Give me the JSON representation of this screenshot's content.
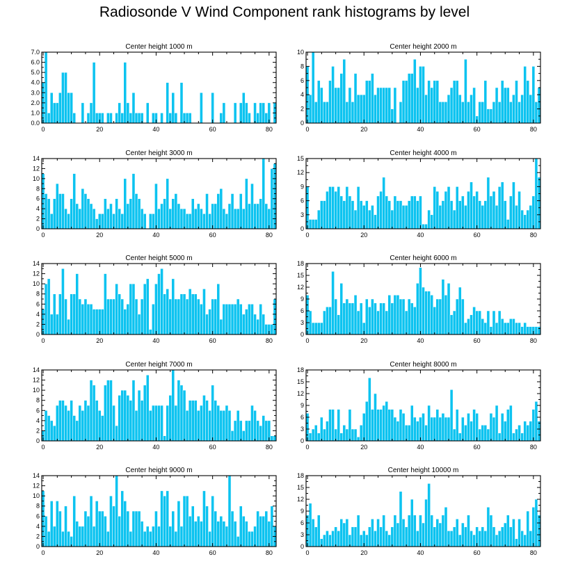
{
  "title": "Radiosonde V Wind Component rank histograms by level",
  "colors": {
    "bar": "#0cc3f0",
    "frame": "#000000",
    "background": "#ffffff"
  },
  "chart_data": [
    {
      "type": "bar",
      "title": "Center height 1000 m",
      "x_start": 0,
      "xticks": [
        0,
        20,
        40,
        60,
        80
      ],
      "ylim": [
        0,
        7
      ],
      "yticks": [
        "0.0",
        "1.0",
        "2.0",
        "3.0",
        "4.0",
        "5.0",
        "6.0",
        "7.0"
      ],
      "ytick_values": [
        0,
        1,
        2,
        3,
        4,
        5,
        6,
        7
      ],
      "values": [
        4,
        7,
        1,
        3,
        2,
        2,
        3,
        5,
        5,
        3,
        3,
        1,
        0,
        0,
        2,
        0,
        1,
        2,
        6,
        1,
        1,
        1,
        0,
        1,
        1,
        0,
        1,
        2,
        1,
        6,
        2,
        1,
        3,
        1,
        1,
        1,
        0,
        2,
        0,
        1,
        1,
        0,
        1,
        0,
        4,
        1,
        3,
        1,
        0,
        4,
        1,
        1,
        1,
        0,
        0,
        0,
        3,
        0,
        0,
        0,
        3,
        0,
        0,
        1,
        2,
        0,
        0,
        0,
        2,
        0,
        2,
        3,
        2,
        1,
        0,
        2,
        1,
        2,
        2,
        1,
        2,
        0,
        2
      ]
    },
    {
      "type": "bar",
      "title": "Center height 2000 m",
      "x_start": 0,
      "xticks": [
        0,
        20,
        40,
        60,
        80
      ],
      "ylim": [
        0,
        10
      ],
      "yticks": [
        "0",
        "2",
        "4",
        "6",
        "8",
        "10"
      ],
      "ytick_values": [
        0,
        2,
        4,
        6,
        8,
        10
      ],
      "values": [
        8,
        4,
        10,
        3,
        6,
        5,
        3,
        3,
        6,
        8,
        5,
        5,
        7,
        9,
        3,
        5,
        3,
        7,
        4,
        4,
        4,
        6,
        6,
        7,
        4,
        5,
        5,
        5,
        5,
        5,
        2,
        5,
        0,
        3,
        6,
        6,
        7,
        7,
        9,
        5,
        8,
        8,
        4,
        6,
        5,
        6,
        6,
        3,
        3,
        3,
        4,
        5,
        6,
        6,
        4,
        3,
        9,
        3,
        4,
        5,
        1,
        3,
        3,
        6,
        2,
        2,
        3,
        5,
        3,
        6,
        5,
        5,
        3,
        4,
        6,
        3,
        4,
        8,
        6,
        4,
        8,
        3,
        5
      ]
    },
    {
      "type": "bar",
      "title": "Center height 3000 m",
      "x_start": 0,
      "xticks": [
        0,
        20,
        40,
        60,
        80
      ],
      "ylim": [
        0,
        14
      ],
      "yticks": [
        "0",
        "2",
        "4",
        "6",
        "8",
        "10",
        "12",
        "14"
      ],
      "ytick_values": [
        0,
        2,
        4,
        6,
        8,
        10,
        12,
        14
      ],
      "values": [
        11,
        7,
        6,
        3,
        6,
        9,
        7,
        7,
        4,
        3,
        6,
        11,
        5,
        4,
        8,
        7,
        6,
        5,
        4,
        2,
        3,
        3,
        6,
        4,
        5,
        3,
        6,
        4,
        3,
        10,
        5,
        6,
        11,
        7,
        6,
        4,
        3,
        0,
        3,
        3,
        9,
        4,
        5,
        6,
        10,
        4,
        6,
        7,
        5,
        4,
        4,
        3,
        3,
        6,
        4,
        5,
        4,
        3,
        7,
        3,
        5,
        5,
        7,
        8,
        4,
        3,
        5,
        7,
        4,
        4,
        7,
        4,
        10,
        5,
        9,
        5,
        5,
        6,
        14,
        5,
        4,
        12,
        13
      ]
    },
    {
      "type": "bar",
      "title": "Center height 4000 m",
      "x_start": 0,
      "xticks": [
        0,
        20,
        40,
        60,
        80
      ],
      "ylim": [
        0,
        15
      ],
      "yticks": [
        "0",
        "3",
        "6",
        "9",
        "12",
        "15"
      ],
      "ytick_values": [
        0,
        3,
        6,
        9,
        12,
        15
      ],
      "values": [
        9,
        2,
        2,
        2,
        4,
        6,
        6,
        8,
        9,
        9,
        8,
        9,
        7,
        6,
        9,
        7,
        6,
        4,
        9,
        6,
        5,
        6,
        4,
        5,
        3,
        7,
        8,
        11,
        7,
        6,
        4,
        7,
        6,
        6,
        5,
        5,
        6,
        7,
        7,
        6,
        7,
        1,
        1,
        4,
        3,
        9,
        8,
        5,
        6,
        8,
        9,
        6,
        4,
        9,
        6,
        7,
        5,
        8,
        10,
        7,
        8,
        6,
        5,
        6,
        11,
        7,
        8,
        5,
        9,
        10,
        6,
        2,
        7,
        10,
        5,
        8,
        4,
        3,
        4,
        5,
        7,
        15,
        11
      ]
    },
    {
      "type": "bar",
      "title": "Center height 5000 m",
      "x_start": 0,
      "xticks": [
        0,
        20,
        40,
        60,
        80
      ],
      "ylim": [
        0,
        14
      ],
      "yticks": [
        "0",
        "2",
        "4",
        "6",
        "8",
        "10",
        "12",
        "14"
      ],
      "ytick_values": [
        0,
        2,
        4,
        6,
        8,
        10,
        12,
        14
      ],
      "values": [
        5,
        10,
        11,
        4,
        8,
        4,
        8,
        13,
        7,
        3,
        8,
        8,
        12,
        7,
        6,
        7,
        6,
        6,
        5,
        5,
        5,
        5,
        12,
        7,
        7,
        7,
        10,
        8,
        7,
        5,
        6,
        10,
        10,
        7,
        4,
        7,
        10,
        11,
        1,
        6,
        10,
        12,
        13,
        8,
        9,
        7,
        11,
        7,
        7,
        8,
        8,
        7,
        9,
        8,
        8,
        7,
        6,
        9,
        4,
        5,
        7,
        7,
        10,
        3,
        6,
        6,
        6,
        6,
        6,
        7,
        6,
        4,
        5,
        6,
        6,
        4,
        3,
        6,
        4,
        2,
        2,
        2,
        7
      ]
    },
    {
      "type": "bar",
      "title": "Center height 6000 m",
      "x_start": 0,
      "xticks": [
        0,
        20,
        40,
        60,
        80
      ],
      "ylim": [
        0,
        18
      ],
      "yticks": [
        "0",
        "3",
        "6",
        "9",
        "12",
        "15",
        "18"
      ],
      "ytick_values": [
        0,
        3,
        6,
        9,
        12,
        15,
        18
      ],
      "values": [
        10,
        6,
        3,
        3,
        3,
        3,
        6,
        7,
        7,
        16,
        9,
        5,
        13,
        8,
        9,
        8,
        8,
        10,
        6,
        8,
        3,
        9,
        7,
        9,
        8,
        6,
        8,
        8,
        6,
        10,
        8,
        10,
        10,
        9,
        9,
        6,
        9,
        8,
        7,
        13,
        17,
        12,
        11,
        11,
        10,
        7,
        9,
        9,
        14,
        10,
        13,
        5,
        6,
        9,
        12,
        9,
        3,
        4,
        5,
        7,
        6,
        6,
        4,
        3,
        6,
        2,
        6,
        3,
        6,
        4,
        3,
        3,
        4,
        4,
        3,
        3,
        2,
        3,
        2,
        2,
        2,
        2,
        2
      ]
    },
    {
      "type": "bar",
      "title": "Center height 7000 m",
      "x_start": 0,
      "xticks": [
        0,
        20,
        40,
        60,
        80
      ],
      "ylim": [
        0,
        14
      ],
      "yticks": [
        "0",
        "2",
        "4",
        "6",
        "8",
        "10",
        "12",
        "14"
      ],
      "ytick_values": [
        0,
        2,
        4,
        6,
        8,
        10,
        12,
        14
      ],
      "values": [
        2,
        6,
        5,
        4,
        3,
        7,
        8,
        8,
        7,
        6,
        8,
        5,
        4,
        7,
        6,
        8,
        7,
        12,
        11,
        8,
        6,
        5,
        11,
        12,
        12,
        7,
        3,
        9,
        10,
        10,
        9,
        8,
        12,
        6,
        10,
        8,
        11,
        13,
        6,
        7,
        7,
        7,
        7,
        1,
        7,
        9,
        14,
        7,
        12,
        11,
        10,
        6,
        8,
        8,
        8,
        6,
        7,
        9,
        8,
        6,
        11,
        8,
        7,
        6,
        6,
        7,
        6,
        2,
        4,
        6,
        4,
        2,
        4,
        4,
        7,
        6,
        4,
        3,
        5,
        4,
        4,
        1,
        1
      ]
    },
    {
      "type": "bar",
      "title": "Center height 8000 m",
      "x_start": 0,
      "xticks": [
        0,
        20,
        40,
        60,
        80
      ],
      "ylim": [
        0,
        18
      ],
      "yticks": [
        "0",
        "3",
        "6",
        "9",
        "12",
        "15",
        "18"
      ],
      "ytick_values": [
        0,
        3,
        6,
        9,
        12,
        15,
        18
      ],
      "values": [
        7,
        2,
        3,
        4,
        2,
        6,
        3,
        5,
        8,
        8,
        3,
        8,
        2,
        4,
        3,
        8,
        3,
        3,
        1,
        4,
        7,
        10,
        16,
        8,
        12,
        8,
        8,
        9,
        10,
        8,
        8,
        6,
        5,
        8,
        7,
        4,
        4,
        9,
        6,
        5,
        6,
        7,
        4,
        9,
        6,
        6,
        8,
        6,
        7,
        6,
        6,
        13,
        3,
        8,
        2,
        6,
        4,
        7,
        5,
        8,
        7,
        3,
        4,
        4,
        3,
        7,
        6,
        9,
        2,
        7,
        5,
        8,
        9,
        2,
        3,
        4,
        2,
        5,
        4,
        5,
        8,
        10,
        5
      ]
    },
    {
      "type": "bar",
      "title": "Center height 9000 m",
      "x_start": 0,
      "xticks": [
        0,
        20,
        40,
        60,
        80
      ],
      "ylim": [
        0,
        14
      ],
      "yticks": [
        "0",
        "2",
        "4",
        "6",
        "8",
        "10",
        "12",
        "14"
      ],
      "ytick_values": [
        0,
        2,
        4,
        6,
        8,
        10,
        12,
        14
      ],
      "values": [
        11,
        6,
        3,
        9,
        4,
        9,
        7,
        3,
        8,
        3,
        2,
        10,
        5,
        4,
        4,
        7,
        6,
        10,
        4,
        9,
        7,
        7,
        6,
        3,
        10,
        8,
        14,
        6,
        11,
        9,
        7,
        3,
        7,
        7,
        7,
        5,
        3,
        4,
        3,
        4,
        7,
        4,
        11,
        10,
        11,
        4,
        7,
        3,
        9,
        4,
        10,
        10,
        6,
        8,
        5,
        6,
        5,
        11,
        8,
        3,
        10,
        7,
        5,
        6,
        5,
        4,
        14,
        7,
        5,
        2,
        8,
        6,
        5,
        3,
        3,
        4,
        7,
        6,
        6,
        7,
        5,
        8,
        4
      ]
    },
    {
      "type": "bar",
      "title": "Center height 10000 m",
      "x_start": 0,
      "xticks": [
        0,
        20,
        40,
        60,
        80
      ],
      "ylim": [
        0,
        18
      ],
      "yticks": [
        "0",
        "3",
        "6",
        "9",
        "12",
        "15",
        "18"
      ],
      "ytick_values": [
        0,
        3,
        6,
        9,
        12,
        15,
        18
      ],
      "values": [
        8,
        11,
        7,
        5,
        8,
        2,
        3,
        4,
        3,
        4,
        5,
        4,
        7,
        6,
        7,
        3,
        5,
        5,
        8,
        3,
        4,
        3,
        5,
        7,
        4,
        7,
        5,
        8,
        4,
        3,
        5,
        8,
        6,
        14,
        7,
        5,
        8,
        12,
        8,
        4,
        8,
        6,
        12,
        16,
        8,
        5,
        7,
        6,
        8,
        10,
        4,
        4,
        5,
        7,
        3,
        6,
        5,
        8,
        4,
        3,
        5,
        4,
        5,
        4,
        10,
        8,
        5,
        3,
        4,
        5,
        6,
        8,
        5,
        7,
        2,
        7,
        4,
        3,
        9,
        4,
        10,
        12,
        8
      ]
    }
  ]
}
